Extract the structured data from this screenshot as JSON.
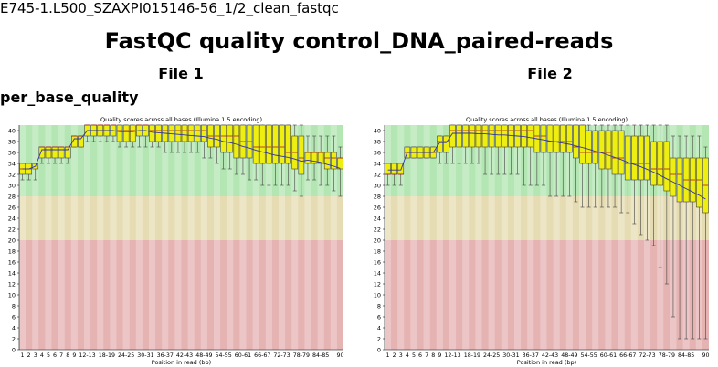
{
  "header": {
    "file_path": "E745-1.L500_SZAXPI015146-56_1/2_clean_fastqc",
    "title": "FastQC quality control_DNA_paired-reads",
    "section": "per_base_quality"
  },
  "files": [
    {
      "label": "File 1"
    },
    {
      "label": "File 2"
    }
  ],
  "colors": {
    "good_zone": "#b3e6b3",
    "warn_zone": "#e6dcb3",
    "bad_zone": "#e6b3b3",
    "box_fill": "#eeee11",
    "box_stroke": "#444444",
    "mean_line": "#3333aa"
  },
  "chart_data": [
    {
      "type": "boxplot",
      "title": "Quality scores across all bases (Illumina 1.5 encoding)",
      "xlabel": "Position in read (bp)",
      "ylabel": "",
      "ylim": [
        0,
        41
      ],
      "yticks": [
        0,
        2,
        4,
        6,
        8,
        10,
        12,
        14,
        16,
        18,
        20,
        22,
        24,
        26,
        28,
        30,
        32,
        34,
        36,
        38,
        40
      ],
      "zones": {
        "bad": [
          0,
          20
        ],
        "warn": [
          20,
          28
        ],
        "good": [
          28,
          41
        ]
      },
      "categories": [
        "1",
        "2",
        "3",
        "4",
        "5",
        "6",
        "7",
        "8",
        "9",
        "10-11",
        "12-13",
        "14-15",
        "16-17",
        "18-19",
        "20-21",
        "22-23",
        "24-25",
        "26-27",
        "28-29",
        "30-31",
        "32-33",
        "34-35",
        "36-37",
        "38-39",
        "40-41",
        "42-43",
        "44-45",
        "46-47",
        "48-49",
        "50-51",
        "52-53",
        "54-55",
        "56-57",
        "58-59",
        "60-61",
        "62-63",
        "64-65",
        "66-67",
        "68-69",
        "70-71",
        "72-73",
        "74-75",
        "76-77",
        "78-79",
        "80-81",
        "82-83",
        "84-85",
        "86-87",
        "88-89",
        "90"
      ],
      "tick_labels": [
        {
          "index": 0,
          "label": "1"
        },
        {
          "index": 1,
          "label": "2"
        },
        {
          "index": 2,
          "label": "3"
        },
        {
          "index": 3,
          "label": "4"
        },
        {
          "index": 4,
          "label": "5"
        },
        {
          "index": 5,
          "label": "6"
        },
        {
          "index": 6,
          "label": "7"
        },
        {
          "index": 7,
          "label": "8"
        },
        {
          "index": 8,
          "label": "9"
        },
        {
          "index": 10,
          "label": "12-13"
        },
        {
          "index": 13,
          "label": "18-19"
        },
        {
          "index": 16,
          "label": "24-25"
        },
        {
          "index": 19,
          "label": "30-31"
        },
        {
          "index": 22,
          "label": "36-37"
        },
        {
          "index": 25,
          "label": "42-43"
        },
        {
          "index": 28,
          "label": "48-49"
        },
        {
          "index": 31,
          "label": "54-55"
        },
        {
          "index": 34,
          "label": "60-61"
        },
        {
          "index": 37,
          "label": "66-67"
        },
        {
          "index": 40,
          "label": "72-73"
        },
        {
          "index": 43,
          "label": "78-79"
        },
        {
          "index": 46,
          "label": "84-85"
        },
        {
          "index": 49,
          "label": "90"
        }
      ],
      "q1": [
        32,
        32,
        33,
        35,
        35,
        35,
        35,
        35,
        37,
        37,
        39,
        39,
        39,
        39,
        39,
        38,
        38,
        38,
        39,
        39,
        38,
        38,
        38,
        38,
        38,
        38,
        38,
        38,
        38,
        37,
        37,
        36,
        36,
        35,
        35,
        35,
        34,
        34,
        34,
        34,
        34,
        34,
        33,
        32,
        34,
        34,
        34,
        33,
        33,
        33
      ],
      "median": [
        33,
        33,
        34,
        37,
        37,
        37,
        37,
        37,
        39,
        39,
        41,
        41,
        41,
        41,
        41,
        40,
        40,
        40,
        41,
        41,
        40,
        40,
        40,
        40,
        40,
        40,
        40,
        40,
        40,
        39,
        39,
        39,
        39,
        39,
        38,
        38,
        37,
        37,
        37,
        37,
        37,
        36,
        36,
        35,
        36,
        36,
        36,
        35,
        35,
        35
      ],
      "q3": [
        34,
        34,
        34,
        37,
        37,
        37,
        37,
        37,
        39,
        39,
        41,
        41,
        41,
        41,
        41,
        41,
        41,
        41,
        41,
        41,
        41,
        41,
        41,
        41,
        41,
        41,
        41,
        41,
        41,
        41,
        41,
        41,
        41,
        41,
        41,
        41,
        41,
        41,
        41,
        41,
        41,
        41,
        39,
        39,
        36,
        36,
        36,
        36,
        36,
        35
      ],
      "lower": [
        31,
        31,
        31,
        34,
        34,
        34,
        34,
        34,
        37,
        37,
        38,
        38,
        38,
        38,
        38,
        37,
        37,
        37,
        37,
        37,
        37,
        37,
        36,
        36,
        36,
        36,
        36,
        36,
        35,
        35,
        34,
        33,
        33,
        32,
        32,
        31,
        31,
        30,
        30,
        30,
        30,
        30,
        29,
        28,
        31,
        31,
        30,
        30,
        29,
        28
      ],
      "upper": [
        34,
        34,
        34,
        37,
        37,
        37,
        37,
        37,
        39,
        39,
        41,
        41,
        41,
        41,
        41,
        41,
        41,
        41,
        41,
        41,
        41,
        41,
        41,
        41,
        41,
        41,
        41,
        41,
        41,
        41,
        41,
        41,
        41,
        41,
        41,
        41,
        41,
        41,
        41,
        41,
        41,
        41,
        41,
        41,
        39,
        39,
        39,
        39,
        39,
        37
      ],
      "mean": [
        33,
        33,
        33.5,
        36.5,
        36.5,
        36.5,
        36.5,
        36.5,
        38.5,
        38.5,
        40,
        40,
        40,
        40,
        40,
        39.8,
        39.8,
        39.8,
        40,
        40,
        39.7,
        39.6,
        39.5,
        39.4,
        39.3,
        39.2,
        39.1,
        39,
        38.9,
        38.6,
        38.4,
        38,
        37.8,
        37.5,
        37.1,
        36.8,
        36.4,
        36.1,
        35.8,
        35.5,
        35.3,
        35.1,
        34.8,
        34.4,
        34.6,
        34.4,
        34.2,
        33.8,
        33.5,
        33.1
      ]
    },
    {
      "type": "boxplot",
      "title": "Quality scores across all bases (Illumina 1.5 encoding)",
      "xlabel": "Position in read (bp)",
      "ylabel": "",
      "ylim": [
        0,
        41
      ],
      "yticks": [
        0,
        2,
        4,
        6,
        8,
        10,
        12,
        14,
        16,
        18,
        20,
        22,
        24,
        26,
        28,
        30,
        32,
        34,
        36,
        38,
        40
      ],
      "zones": {
        "bad": [
          0,
          20
        ],
        "warn": [
          20,
          28
        ],
        "good": [
          28,
          41
        ]
      },
      "categories": [
        "1",
        "2",
        "3",
        "4",
        "5",
        "6",
        "7",
        "8",
        "9",
        "10-11",
        "12-13",
        "14-15",
        "16-17",
        "18-19",
        "20-21",
        "22-23",
        "24-25",
        "26-27",
        "28-29",
        "30-31",
        "32-33",
        "34-35",
        "36-37",
        "38-39",
        "40-41",
        "42-43",
        "44-45",
        "46-47",
        "48-49",
        "50-51",
        "52-53",
        "54-55",
        "56-57",
        "58-59",
        "60-61",
        "62-63",
        "64-65",
        "66-67",
        "68-69",
        "70-71",
        "72-73",
        "74-75",
        "76-77",
        "78-79",
        "80-81",
        "82-83",
        "84-85",
        "86-87",
        "88-89",
        "90"
      ],
      "tick_labels": [
        {
          "index": 0,
          "label": "1"
        },
        {
          "index": 1,
          "label": "2"
        },
        {
          "index": 2,
          "label": "3"
        },
        {
          "index": 3,
          "label": "4"
        },
        {
          "index": 4,
          "label": "5"
        },
        {
          "index": 5,
          "label": "6"
        },
        {
          "index": 6,
          "label": "7"
        },
        {
          "index": 7,
          "label": "8"
        },
        {
          "index": 8,
          "label": "9"
        },
        {
          "index": 10,
          "label": "12-13"
        },
        {
          "index": 13,
          "label": "18-19"
        },
        {
          "index": 16,
          "label": "24-25"
        },
        {
          "index": 19,
          "label": "30-31"
        },
        {
          "index": 22,
          "label": "36-37"
        },
        {
          "index": 25,
          "label": "42-43"
        },
        {
          "index": 28,
          "label": "48-49"
        },
        {
          "index": 31,
          "label": "54-55"
        },
        {
          "index": 34,
          "label": "60-61"
        },
        {
          "index": 37,
          "label": "66-67"
        },
        {
          "index": 40,
          "label": "72-73"
        },
        {
          "index": 43,
          "label": "78-79"
        },
        {
          "index": 46,
          "label": "84-85"
        },
        {
          "index": 49,
          "label": "90"
        }
      ],
      "q1": [
        32,
        32,
        32,
        35,
        35,
        35,
        35,
        35,
        36,
        36,
        37,
        37,
        37,
        37,
        37,
        37,
        37,
        37,
        37,
        37,
        37,
        37,
        37,
        36,
        36,
        36,
        36,
        36,
        36,
        35,
        34,
        34,
        34,
        33,
        33,
        32,
        32,
        31,
        31,
        31,
        31,
        30,
        30,
        29,
        28,
        27,
        27,
        27,
        26,
        25
      ],
      "median": [
        32,
        32,
        32,
        36,
        36,
        36,
        36,
        36,
        38,
        38,
        40,
        40,
        40,
        40,
        40,
        40,
        40,
        40,
        40,
        40,
        40,
        40,
        40,
        39,
        39,
        38,
        38,
        38,
        38,
        37,
        36,
        36,
        36,
        36,
        36,
        35,
        35,
        34,
        34,
        34,
        34,
        33,
        33,
        33,
        32,
        32,
        31,
        31,
        31,
        30
      ],
      "q3": [
        34,
        34,
        34,
        37,
        37,
        37,
        37,
        37,
        39,
        39,
        41,
        41,
        41,
        41,
        41,
        41,
        41,
        41,
        41,
        41,
        41,
        41,
        41,
        41,
        41,
        41,
        41,
        41,
        41,
        41,
        41,
        40,
        40,
        40,
        40,
        40,
        40,
        39,
        39,
        39,
        39,
        38,
        38,
        38,
        35,
        35,
        35,
        35,
        35,
        35
      ],
      "lower": [
        30,
        30,
        30,
        35,
        35,
        35,
        35,
        35,
        34,
        34,
        34,
        34,
        34,
        34,
        34,
        32,
        32,
        32,
        32,
        32,
        32,
        30,
        30,
        30,
        30,
        28,
        28,
        28,
        28,
        27,
        26,
        26,
        26,
        26,
        26,
        26,
        25,
        25,
        23,
        21,
        20,
        19,
        15,
        12,
        6,
        2,
        2,
        2,
        2,
        2
      ],
      "upper": [
        34,
        34,
        34,
        37,
        37,
        37,
        37,
        37,
        39,
        39,
        41,
        41,
        41,
        41,
        41,
        41,
        41,
        41,
        41,
        41,
        41,
        41,
        41,
        41,
        41,
        41,
        41,
        41,
        41,
        41,
        41,
        41,
        41,
        41,
        41,
        41,
        41,
        41,
        41,
        41,
        41,
        41,
        41,
        41,
        39,
        39,
        39,
        39,
        39,
        37
      ],
      "mean": [
        32.8,
        32.8,
        32.8,
        36,
        36,
        36,
        36,
        36,
        37.8,
        37.8,
        39.5,
        39.5,
        39.5,
        39.5,
        39.4,
        39.4,
        39.3,
        39.2,
        39.2,
        39.1,
        39,
        38.9,
        38.7,
        38.5,
        38.3,
        38.1,
        37.9,
        37.7,
        37.5,
        37.2,
        36.9,
        36.6,
        36.2,
        35.9,
        35.5,
        35.1,
        34.7,
        34.2,
        33.8,
        33.4,
        32.9,
        32.4,
        31.8,
        31.2,
        30.6,
        30,
        29.4,
        28.8,
        28.2,
        27.5
      ]
    }
  ]
}
